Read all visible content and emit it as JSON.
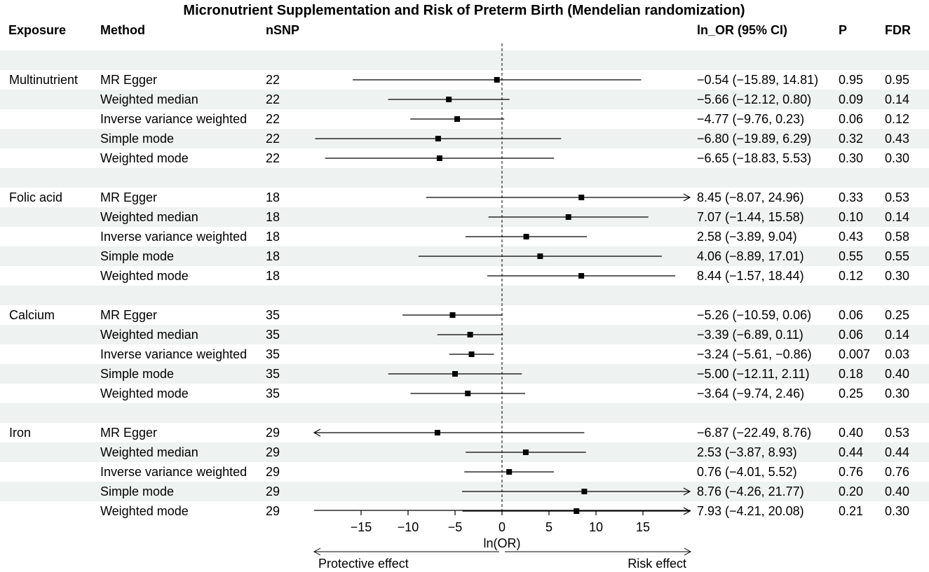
{
  "chart_data": {
    "type": "forest",
    "title": "Micronutrient Supplementation and Risk of Preterm Birth (Mendelian randomization)",
    "columns": {
      "exposure": "Exposure",
      "method": "Method",
      "nsnp": "nSNP",
      "estimate": "ln_OR (95% CI)",
      "p": "P",
      "fdr": "FDR"
    },
    "xlabel": "ln(OR)",
    "xlim": [
      -20,
      20
    ],
    "xticks": [
      -15,
      -10,
      -5,
      0,
      5,
      10,
      15
    ],
    "tick_labels": [
      "−15",
      "−10",
      "−5",
      "0",
      "5",
      "10",
      "15"
    ],
    "direction_labels": {
      "left": "Protective effect",
      "right": "Risk effect"
    },
    "groups": [
      {
        "exposure": "Multinutrient",
        "rows": [
          {
            "method": "MR Egger",
            "nsnp": "22",
            "est": -0.54,
            "lo": -15.89,
            "hi": 14.81,
            "ci_text": "−0.54 (−15.89, 14.81)",
            "p": "0.95",
            "fdr": "0.95"
          },
          {
            "method": "Weighted median",
            "nsnp": "22",
            "est": -5.66,
            "lo": -12.12,
            "hi": 0.8,
            "ci_text": "−5.66 (−12.12, 0.80)",
            "p": "0.09",
            "fdr": "0.14"
          },
          {
            "method": "Inverse variance weighted",
            "nsnp": "22",
            "est": -4.77,
            "lo": -9.76,
            "hi": 0.23,
            "ci_text": "−4.77 (−9.76, 0.23)",
            "p": "0.06",
            "fdr": "0.12"
          },
          {
            "method": "Simple mode",
            "nsnp": "22",
            "est": -6.8,
            "lo": -19.89,
            "hi": 6.29,
            "ci_text": "−6.80 (−19.89, 6.29)",
            "p": "0.32",
            "fdr": "0.43"
          },
          {
            "method": "Weighted mode",
            "nsnp": "22",
            "est": -6.65,
            "lo": -18.83,
            "hi": 5.53,
            "ci_text": "−6.65 (−18.83, 5.53)",
            "p": "0.30",
            "fdr": "0.30"
          }
        ]
      },
      {
        "exposure": "Folic acid",
        "rows": [
          {
            "method": "MR Egger",
            "nsnp": "18",
            "est": 8.45,
            "lo": -8.07,
            "hi": 24.96,
            "ci_text": "8.45 (−8.07, 24.96)",
            "p": "0.33",
            "fdr": "0.53"
          },
          {
            "method": "Weighted median",
            "nsnp": "18",
            "est": 7.07,
            "lo": -1.44,
            "hi": 15.58,
            "ci_text": "7.07 (−1.44, 15.58)",
            "p": "0.10",
            "fdr": "0.14"
          },
          {
            "method": "Inverse variance weighted",
            "nsnp": "18",
            "est": 2.58,
            "lo": -3.89,
            "hi": 9.04,
            "ci_text": "2.58 (−3.89, 9.04)",
            "p": "0.43",
            "fdr": "0.58"
          },
          {
            "method": "Simple mode",
            "nsnp": "18",
            "est": 4.06,
            "lo": -8.89,
            "hi": 17.01,
            "ci_text": "4.06 (−8.89, 17.01)",
            "p": "0.55",
            "fdr": "0.55"
          },
          {
            "method": "Weighted mode",
            "nsnp": "18",
            "est": 8.44,
            "lo": -1.57,
            "hi": 18.44,
            "ci_text": "8.44 (−1.57, 18.44)",
            "p": "0.12",
            "fdr": "0.30"
          }
        ]
      },
      {
        "exposure": "Calcium",
        "rows": [
          {
            "method": "MR Egger",
            "nsnp": "35",
            "est": -5.26,
            "lo": -10.59,
            "hi": 0.06,
            "ci_text": "−5.26 (−10.59, 0.06)",
            "p": "0.06",
            "fdr": "0.25"
          },
          {
            "method": "Weighted median",
            "nsnp": "35",
            "est": -3.39,
            "lo": -6.89,
            "hi": 0.11,
            "ci_text": "−3.39 (−6.89, 0.11)",
            "p": "0.06",
            "fdr": "0.14"
          },
          {
            "method": "Inverse variance weighted",
            "nsnp": "35",
            "est": -3.24,
            "lo": -5.61,
            "hi": -0.86,
            "ci_text": "−3.24 (−5.61, −0.86)",
            "p": "0.007",
            "fdr": "0.03"
          },
          {
            "method": "Simple mode",
            "nsnp": "35",
            "est": -5.0,
            "lo": -12.11,
            "hi": 2.11,
            "ci_text": "−5.00 (−12.11, 2.11)",
            "p": "0.18",
            "fdr": "0.40"
          },
          {
            "method": "Weighted mode",
            "nsnp": "35",
            "est": -3.64,
            "lo": -9.74,
            "hi": 2.46,
            "ci_text": "−3.64 (−9.74, 2.46)",
            "p": "0.25",
            "fdr": "0.30"
          }
        ]
      },
      {
        "exposure": "Iron",
        "rows": [
          {
            "method": "MR Egger",
            "nsnp": "29",
            "est": -6.87,
            "lo": -22.49,
            "hi": 8.76,
            "ci_text": "−6.87 (−22.49, 8.76)",
            "p": "0.40",
            "fdr": "0.53"
          },
          {
            "method": "Weighted median",
            "nsnp": "29",
            "est": 2.53,
            "lo": -3.87,
            "hi": 8.93,
            "ci_text": "2.53 (−3.87, 8.93)",
            "p": "0.44",
            "fdr": "0.44"
          },
          {
            "method": "Inverse variance weighted",
            "nsnp": "29",
            "est": 0.76,
            "lo": -4.01,
            "hi": 5.52,
            "ci_text": "0.76 (−4.01, 5.52)",
            "p": "0.76",
            "fdr": "0.76"
          },
          {
            "method": "Simple mode",
            "nsnp": "29",
            "est": 8.76,
            "lo": -4.26,
            "hi": 21.77,
            "ci_text": "8.76 (−4.26, 21.77)",
            "p": "0.20",
            "fdr": "0.40"
          },
          {
            "method": "Weighted mode",
            "nsnp": "29",
            "est": 7.93,
            "lo": -4.21,
            "hi": 20.08,
            "ci_text": "7.93 (−4.21, 20.08)",
            "p": "0.21",
            "fdr": "0.30"
          }
        ]
      }
    ],
    "colors": {
      "band": "#eef2f0",
      "ink": "#000000"
    }
  }
}
